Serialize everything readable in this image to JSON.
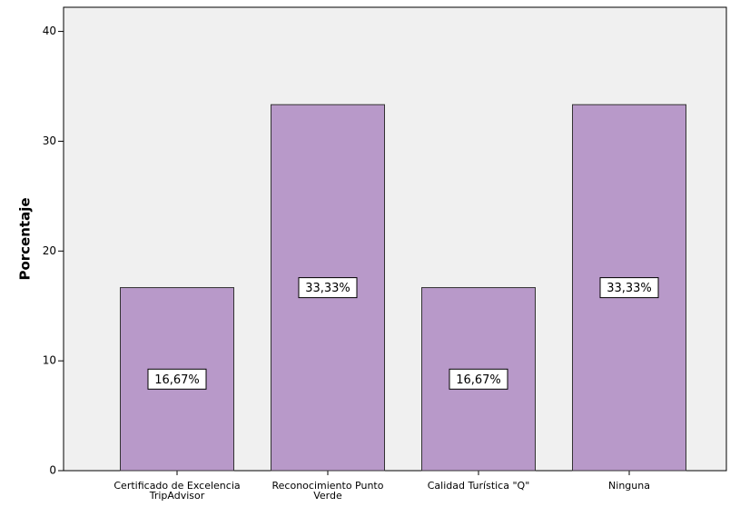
{
  "chart_data": {
    "type": "bar",
    "y_label": "Porcentaje",
    "categories": [
      "Certificado de Excelencia TripAdvisor",
      "Reconocimiento Punto Verde",
      "Calidad Turística \"Q\"",
      "Ninguna"
    ],
    "values": [
      16.67,
      33.33,
      16.67,
      33.33
    ],
    "value_labels": [
      "16,67%",
      "33,33%",
      "16,67%",
      "33,33%"
    ],
    "color": "#b899c9",
    "ylim": [
      0,
      42.2
    ],
    "yticks": [
      0,
      10,
      20,
      30,
      40
    ],
    "grid": false
  }
}
